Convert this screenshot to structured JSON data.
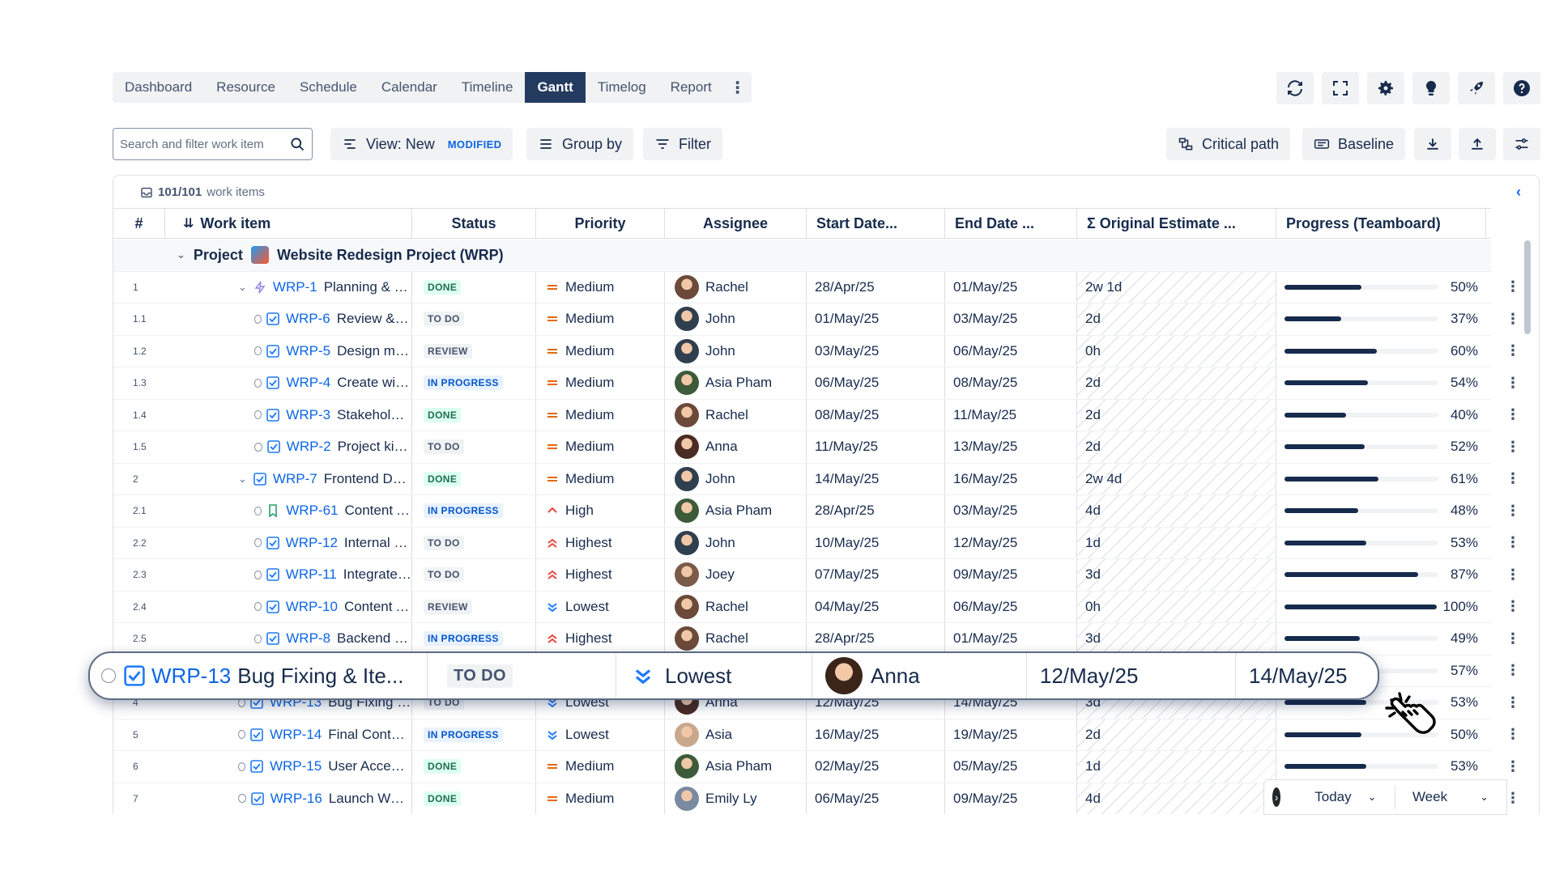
{
  "nav": {
    "tabs": [
      "Dashboard",
      "Resource",
      "Schedule",
      "Calendar",
      "Timeline",
      "Gantt",
      "Timelog",
      "Report"
    ],
    "active_tab": "Gantt",
    "icons": [
      "sync-icon",
      "fullscreen-icon",
      "gear-icon",
      "lightbulb-icon",
      "rocket-icon",
      "help-icon"
    ]
  },
  "toolbar": {
    "search_placeholder": "Search and filter work item",
    "view_label": "View: New",
    "view_badge": "MODIFIED",
    "group_by_label": "Group by",
    "filter_label": "Filter",
    "critical_path_label": "Critical path",
    "baseline_label": "Baseline"
  },
  "table": {
    "count_bold": "101/101",
    "count_label": "work items",
    "columns": [
      "#",
      "Work item",
      "Status",
      "Priority",
      "Assignee",
      "Start Date...",
      "End Date ...",
      "Σ Original Estimate ...",
      "Progress (Teamboard)"
    ],
    "group": {
      "label": "Project",
      "name": "Website Redesign Project (WRP)"
    },
    "rows": [
      {
        "num": "1",
        "key": "WRP-1",
        "title": "Planning & Design",
        "status": "DONE",
        "priority": "Medium",
        "assignee": "Rachel",
        "start": "28/Apr/25",
        "end": "01/May/25",
        "estimate": "2w 1d",
        "progress": 50,
        "progress_label": "50%"
      },
      {
        "num": "1.1",
        "key": "WRP-6",
        "title": "Review & app...",
        "status": "TO DO",
        "priority": "Medium",
        "assignee": "John",
        "start": "01/May/25",
        "end": "03/May/25",
        "estimate": "2d",
        "progress": 37,
        "progress_label": "37%"
      },
      {
        "num": "1.2",
        "key": "WRP-5",
        "title": "Design mock...",
        "status": "REVIEW",
        "priority": "Medium",
        "assignee": "John",
        "start": "03/May/25",
        "end": "06/May/25",
        "estimate": "0h",
        "progress": 60,
        "progress_label": "60%"
      },
      {
        "num": "1.3",
        "key": "WRP-4",
        "title": "Create wirefr...",
        "status": "IN PROGRESS",
        "priority": "Medium",
        "assignee": "Asia Pham",
        "start": "06/May/25",
        "end": "08/May/25",
        "estimate": "2d",
        "progress": 54,
        "progress_label": "54%"
      },
      {
        "num": "1.4",
        "key": "WRP-3",
        "title": "Stakeholder i...",
        "status": "DONE",
        "priority": "Medium",
        "assignee": "Rachel",
        "start": "08/May/25",
        "end": "11/May/25",
        "estimate": "2d",
        "progress": 40,
        "progress_label": "40%"
      },
      {
        "num": "1.5",
        "key": "WRP-2",
        "title": "Project kickoff",
        "status": "TO DO",
        "priority": "Medium",
        "assignee": "Anna",
        "start": "11/May/25",
        "end": "13/May/25",
        "estimate": "2d",
        "progress": 52,
        "progress_label": "52%"
      },
      {
        "num": "2",
        "key": "WRP-7",
        "title": "Frontend Develo...",
        "status": "DONE",
        "priority": "Medium",
        "assignee": "John",
        "start": "14/May/25",
        "end": "16/May/25",
        "estimate": "2w 4d",
        "progress": 61,
        "progress_label": "61%"
      },
      {
        "num": "2.1",
        "key": "WRP-61",
        "title": "Content Audit",
        "status": "IN PROGRESS",
        "priority": "High",
        "assignee": "Asia Pham",
        "start": "28/Apr/25",
        "end": "03/May/25",
        "estimate": "4d",
        "progress": 48,
        "progress_label": "48%"
      },
      {
        "num": "2.2",
        "key": "WRP-12",
        "title": "Internal QA T...",
        "status": "TO DO",
        "priority": "Highest",
        "assignee": "John",
        "start": "10/May/25",
        "end": "12/May/25",
        "estimate": "1d",
        "progress": 53,
        "progress_label": "53%"
      },
      {
        "num": "2.3",
        "key": "WRP-11",
        "title": "Integrate Fro...",
        "status": "TO DO",
        "priority": "Highest",
        "assignee": "Joey",
        "start": "07/May/25",
        "end": "09/May/25",
        "estimate": "3d",
        "progress": 87,
        "progress_label": "87%"
      },
      {
        "num": "2.4",
        "key": "WRP-10",
        "title": "Content Audi...",
        "status": "REVIEW",
        "priority": "Lowest",
        "assignee": "Rachel",
        "start": "04/May/25",
        "end": "06/May/25",
        "estimate": "0h",
        "progress": 100,
        "progress_label": "100%"
      },
      {
        "num": "2.5",
        "key": "WRP-8",
        "title": "Backend Dev...",
        "status": "IN PROGRESS",
        "priority": "Highest",
        "assignee": "Rachel",
        "start": "28/Apr/25",
        "end": "01/May/25",
        "estimate": "3d",
        "progress": 49,
        "progress_label": "49%"
      },
      {
        "num": "3",
        "key": "",
        "title": "",
        "status": "",
        "priority": "",
        "assignee": "",
        "start": "",
        "end": "",
        "estimate": "",
        "progress": 57,
        "progress_label": "57%"
      },
      {
        "num": "4",
        "key": "WRP-13",
        "title": "Bug Fixing & Ite...",
        "status": "TO DO",
        "priority": "Lowest",
        "assignee": "Anna",
        "start": "12/May/25",
        "end": "14/May/25",
        "estimate": "3d",
        "progress": 53,
        "progress_label": "53%"
      },
      {
        "num": "5",
        "key": "WRP-14",
        "title": "Final Content U...",
        "status": "IN PROGRESS",
        "priority": "Lowest",
        "assignee": "Asia",
        "start": "16/May/25",
        "end": "19/May/25",
        "estimate": "2d",
        "progress": 50,
        "progress_label": "50%"
      },
      {
        "num": "6",
        "key": "WRP-15",
        "title": "User Acceptanc...",
        "status": "DONE",
        "priority": "Medium",
        "assignee": "Asia Pham",
        "start": "02/May/25",
        "end": "05/May/25",
        "estimate": "1d",
        "progress": 53,
        "progress_label": "53%"
      },
      {
        "num": "7",
        "key": "WRP-16",
        "title": "Launch Website",
        "status": "DONE",
        "priority": "Medium",
        "assignee": "Emily Ly",
        "start": "06/May/25",
        "end": "09/May/25",
        "estimate": "4d",
        "progress": null,
        "progress_label": ""
      }
    ]
  },
  "drag_row": {
    "key": "WRP-13",
    "title": "Bug Fixing & Ite...",
    "status": "TO DO",
    "priority": "Lowest",
    "assignee": "Anna",
    "start": "12/May/25",
    "end": "14/May/25"
  },
  "bottom": {
    "today_label": "Today",
    "scale_label": "Week"
  },
  "colors": {
    "accent": "#0c66e4",
    "active_tab": "#243b60",
    "priority_medium": "#e56910",
    "priority_high": "#e2483d",
    "priority_low": "#1d7afc"
  }
}
